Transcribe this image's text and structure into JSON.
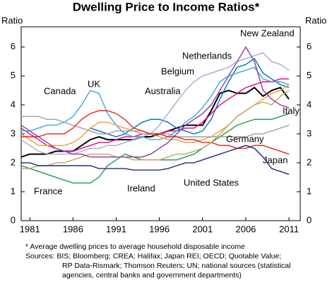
{
  "chart_data": {
    "type": "line",
    "title": "Dwelling Price to Income Ratios*",
    "y_label": "Ratio",
    "y2_label": "Ratio",
    "x": [
      1980,
      1981,
      1982,
      1983,
      1984,
      1985,
      1986,
      1987,
      1988,
      1989,
      1990,
      1991,
      1992,
      1993,
      1994,
      1995,
      1996,
      1997,
      1998,
      1999,
      2000,
      2001,
      2002,
      2003,
      2004,
      2005,
      2006,
      2007,
      2008,
      2009,
      2010,
      2011
    ],
    "xlim": [
      1980,
      2012.3
    ],
    "xticks": [
      1981,
      1986,
      1991,
      1996,
      2001,
      2006,
      2011
    ],
    "ylim": [
      0,
      6.7
    ],
    "yticks": [
      0,
      1,
      2,
      3,
      4,
      5,
      6
    ],
    "y2lim": [
      0,
      6.7
    ],
    "y2ticks": [
      0,
      1,
      2,
      3,
      4,
      5,
      6
    ],
    "series": [
      {
        "name": "Australia",
        "color": "#000000",
        "values": [
          2.2,
          2.3,
          2.3,
          2.3,
          2.4,
          2.4,
          2.4,
          2.6,
          2.8,
          2.9,
          2.8,
          2.8,
          2.8,
          2.8,
          2.9,
          2.9,
          3.0,
          3.1,
          3.2,
          3.3,
          3.3,
          3.3,
          3.8,
          4.4,
          4.5,
          4.4,
          4.4,
          4.6,
          4.3,
          4.5,
          4.6,
          4.2
        ]
      },
      {
        "name": "New Zealand",
        "color": "#0070c0",
        "values": [
          null,
          null,
          null,
          null,
          null,
          null,
          null,
          null,
          3.2,
          3.1,
          3.0,
          2.9,
          3.0,
          3.2,
          3.4,
          3.5,
          3.5,
          3.4,
          3.2,
          3.1,
          3.0,
          3.1,
          3.5,
          4.2,
          4.8,
          5.3,
          5.4,
          5.6,
          5.1,
          4.9,
          4.7,
          4.6
        ]
      },
      {
        "name": "Netherlands",
        "color": "#a9a6d8",
        "values": [
          2.8,
          2.6,
          2.4,
          2.3,
          2.3,
          2.3,
          2.3,
          2.4,
          2.5,
          2.5,
          2.6,
          2.6,
          2.7,
          2.8,
          2.9,
          3.0,
          3.3,
          3.7,
          4.1,
          4.5,
          4.8,
          5.0,
          5.1,
          5.2,
          5.3,
          5.5,
          5.6,
          5.7,
          5.8,
          5.5,
          5.4,
          5.2
        ]
      },
      {
        "name": "Belgium",
        "color": "#e6007e",
        "values": [
          3.2,
          3.0,
          2.8,
          2.6,
          2.5,
          2.4,
          2.4,
          2.5,
          2.6,
          2.7,
          2.7,
          2.8,
          2.9,
          2.9,
          3.0,
          3.0,
          3.0,
          3.1,
          3.1,
          3.2,
          3.2,
          3.4,
          3.7,
          4.0,
          4.2,
          4.4,
          4.6,
          4.7,
          4.8,
          4.8,
          4.9,
          4.9
        ]
      },
      {
        "name": "UK",
        "color": "#36a9e1",
        "values": [
          3.1,
          3.1,
          3.2,
          3.3,
          3.3,
          3.4,
          3.6,
          4.0,
          4.5,
          4.4,
          3.7,
          3.3,
          3.0,
          2.9,
          2.9,
          2.8,
          2.8,
          2.9,
          3.1,
          3.4,
          3.6,
          3.9,
          4.3,
          4.8,
          5.0,
          5.1,
          5.2,
          5.3,
          4.9,
          4.8,
          4.8,
          4.7
        ]
      },
      {
        "name": "Canada",
        "color": "#f39c34",
        "values": [
          3.0,
          2.8,
          2.6,
          2.6,
          2.6,
          2.6,
          2.7,
          2.9,
          3.2,
          3.4,
          3.4,
          3.3,
          3.2,
          3.1,
          3.1,
          3.0,
          2.9,
          2.8,
          2.8,
          2.7,
          2.7,
          2.8,
          2.9,
          3.1,
          3.3,
          3.6,
          3.8,
          4.0,
          4.2,
          4.4,
          4.5,
          4.7
        ]
      },
      {
        "name": "Italy",
        "color": "#1a9b4e",
        "values": [
          1.9,
          1.8,
          1.7,
          1.6,
          1.5,
          1.4,
          1.3,
          1.3,
          1.3,
          1.5,
          1.9,
          2.1,
          2.3,
          2.2,
          2.1,
          2.1,
          2.1,
          2.1,
          2.1,
          2.2,
          2.3,
          2.5,
          2.7,
          2.9,
          3.1,
          3.3,
          3.4,
          3.5,
          3.5,
          3.5,
          3.6,
          3.7
        ]
      },
      {
        "name": "Germany",
        "color": "#a0a0a0",
        "values": [
          3.6,
          3.6,
          3.6,
          3.5,
          3.5,
          3.4,
          3.3,
          3.2,
          3.1,
          3.0,
          3.0,
          3.1,
          3.1,
          3.1,
          3.0,
          3.0,
          3.0,
          3.0,
          2.9,
          2.9,
          2.9,
          2.9,
          2.9,
          2.9,
          2.9,
          2.9,
          2.9,
          3.0,
          3.0,
          3.1,
          3.2,
          3.3
        ]
      },
      {
        "name": "Japan",
        "color": "#e2231a",
        "values": [
          2.9,
          2.9,
          2.9,
          3.0,
          3.0,
          3.0,
          3.2,
          3.5,
          3.7,
          3.8,
          3.8,
          3.7,
          3.5,
          3.2,
          3.1,
          3.0,
          3.0,
          2.9,
          2.9,
          2.8,
          2.8,
          2.7,
          2.7,
          2.6,
          2.6,
          2.5,
          2.5,
          2.6,
          2.6,
          2.5,
          2.4,
          2.3
        ]
      },
      {
        "name": "France",
        "color": "#c9a45a",
        "values": [
          1.8,
          1.8,
          1.9,
          1.9,
          2.0,
          2.0,
          2.1,
          2.2,
          2.3,
          2.3,
          2.3,
          2.2,
          2.2,
          2.1,
          2.1,
          2.1,
          2.1,
          2.2,
          2.3,
          2.3,
          2.4,
          2.5,
          2.7,
          3.0,
          3.3,
          3.6,
          3.8,
          4.0,
          4.1,
          4.0,
          4.3,
          4.5
        ]
      },
      {
        "name": "Ireland",
        "color": "#8e3b9d",
        "values": [
          3.3,
          3.1,
          2.9,
          2.7,
          2.5,
          2.4,
          2.3,
          2.3,
          2.2,
          2.2,
          2.2,
          2.2,
          2.2,
          2.2,
          2.2,
          2.3,
          2.5,
          2.7,
          3.0,
          3.3,
          3.5,
          3.7,
          4.0,
          4.5,
          5.0,
          5.5,
          6.0,
          5.5,
          4.5,
          4.2,
          4.0,
          3.9
        ]
      },
      {
        "name": "United States",
        "color": "#1f2a7a",
        "values": [
          2.0,
          2.0,
          1.9,
          1.9,
          1.9,
          1.9,
          1.9,
          1.9,
          1.9,
          1.8,
          1.8,
          1.8,
          1.8,
          1.75,
          1.75,
          1.75,
          1.75,
          1.8,
          1.9,
          2.0,
          2.0,
          2.1,
          2.2,
          2.3,
          2.4,
          2.5,
          2.6,
          2.5,
          2.2,
          1.8,
          1.7,
          1.6
        ]
      }
    ],
    "footnote": [
      "*     Average dwelling prices to average household disposable income",
      "Sources: BIS; Bloomberg; CREA; Halifax; Japan REI; OECD; Quotable Value;",
      "RP Data-Rismark; Thomson Reuters; UN; national sources (statistical",
      "agencies, central banks and government departments)"
    ]
  }
}
